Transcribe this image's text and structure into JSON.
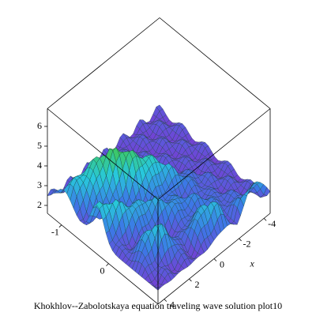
{
  "chart_data": {
    "type": "surface",
    "title": "Khokhlov--Zabolotskaya equation traveling wave solution plot10",
    "x_label": "x",
    "xlim": [
      4.5,
      -4.5
    ],
    "xticks": [
      4,
      2,
      0,
      -2,
      -4
    ],
    "ylim": [
      -1.3,
      1.05
    ],
    "yticks": [
      -1,
      0
    ],
    "zlim": [
      1.6,
      6.9
    ],
    "zticks": [
      2,
      3,
      4,
      5,
      6
    ]
  }
}
